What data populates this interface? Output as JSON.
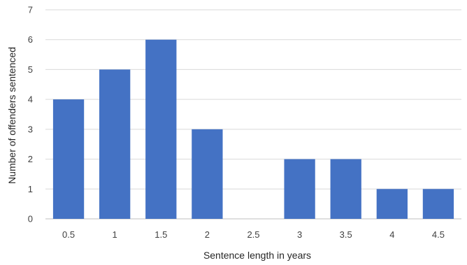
{
  "chart_data": {
    "type": "bar",
    "categories": [
      "0.5",
      "1",
      "1.5",
      "2",
      "2.5",
      "3",
      "3.5",
      "4",
      "4.5"
    ],
    "values": [
      4,
      5,
      6,
      3,
      0,
      2,
      2,
      1,
      1
    ],
    "title": "",
    "xlabel": "Sentence length in years",
    "ylabel": "Number of offenders sentenced",
    "ylim": [
      0,
      7
    ],
    "yticks": [
      0,
      1,
      2,
      3,
      4,
      5,
      6,
      7
    ],
    "grid": true,
    "bar_color": "#4472c4"
  }
}
